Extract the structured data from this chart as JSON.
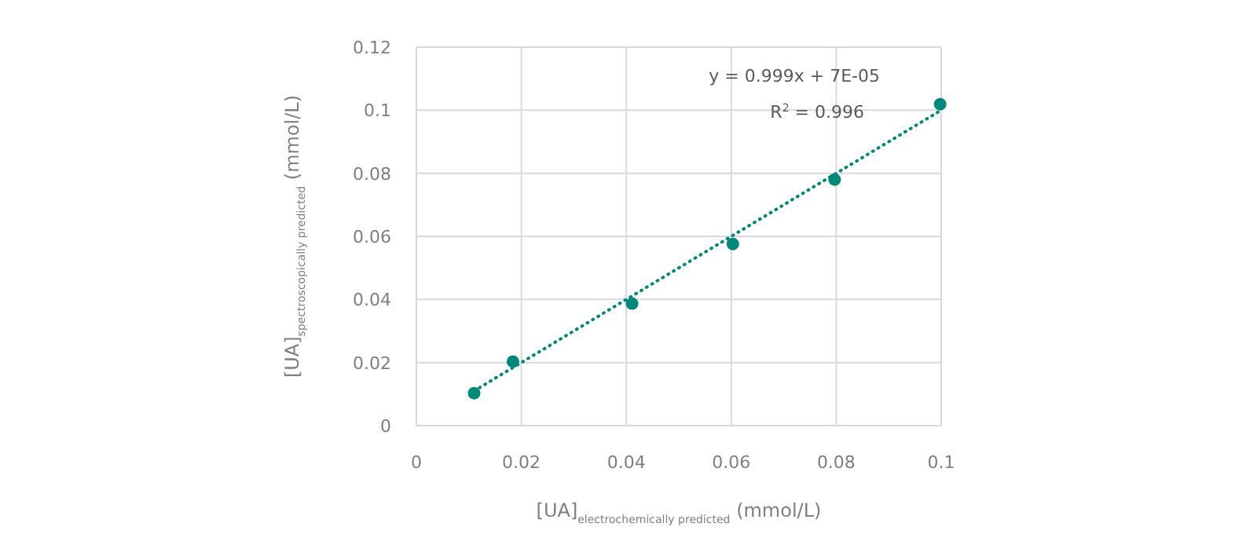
{
  "chart_data": {
    "type": "scatter",
    "xlabel": "[UA]$_{electrochemically predicted}$ (mmol/L)",
    "ylabel": "[UA]$_{spectroscopically predicted}$ (mmol/L)",
    "xlim": [
      0,
      0.1
    ],
    "xticks": [
      0,
      0.02,
      0.04,
      0.06,
      0.08,
      0.1
    ],
    "ylim": [
      0,
      0.12
    ],
    "yticks": [
      0,
      0.02,
      0.04,
      0.06,
      0.08,
      0.1,
      0.12
    ],
    "grid": true,
    "marker": "circle",
    "annotations": [
      "y = 0.999x + 7E-05",
      "R$^{2}$ = 0.996"
    ],
    "series": [
      {
        "color": "#00897b",
        "x": [
          0.011,
          0.0184,
          0.0411,
          0.0603,
          0.0797,
          0.0998
        ],
        "values": [
          0.0103,
          0.0203,
          0.0387,
          0.0576,
          0.078,
          0.1019
        ]
      },
      {
        "type": "line",
        "color": "#00897b",
        "line_style": "dotted",
        "marker": "none",
        "x": [
          0.011,
          0.1
        ],
        "values": [
          0.011,
          0.1
        ]
      }
    ]
  }
}
